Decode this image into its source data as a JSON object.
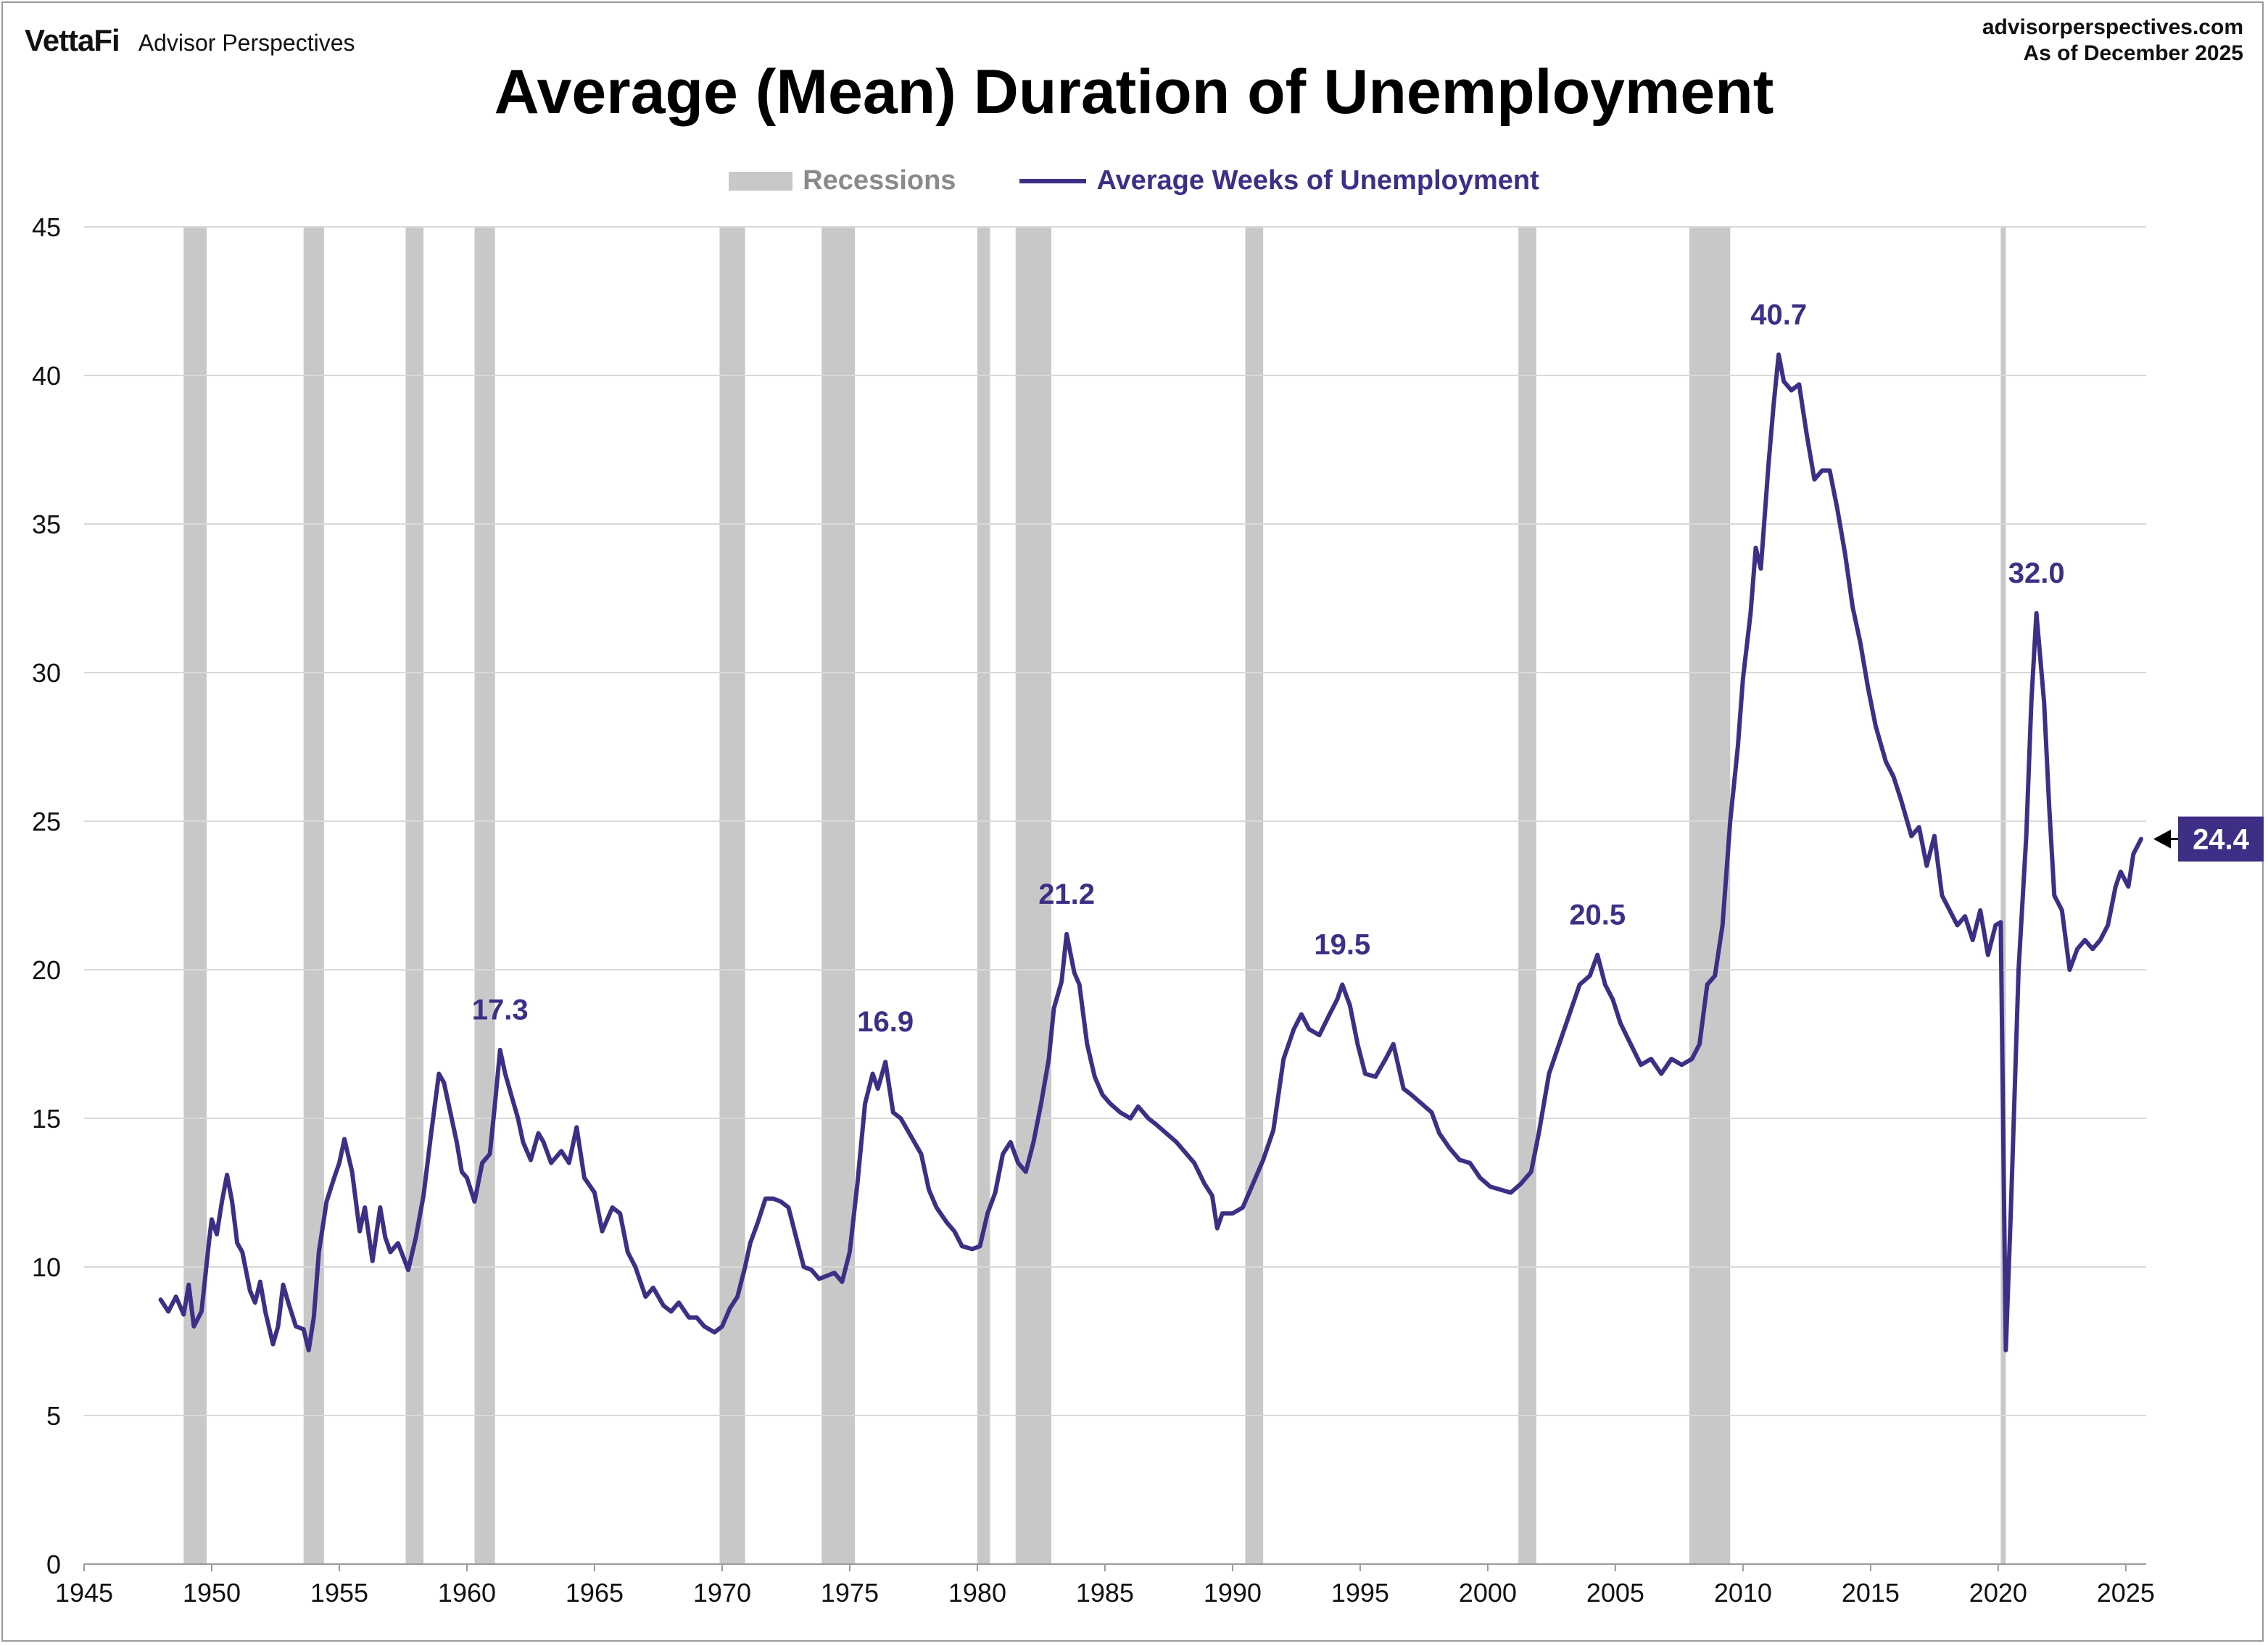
{
  "header": {
    "logo": "VettaFi",
    "brand": "Advisor Perspectives",
    "source_url": "advisorperspectives.com",
    "as_of": "As of December 2025"
  },
  "colors": {
    "line": "#3f2e86",
    "recession": "#c8c8c8",
    "grid": "#d9d9d9"
  },
  "chart_data": {
    "type": "line",
    "title": "Average (Mean) Duration of Unemployment",
    "xlabel": "",
    "ylabel": "",
    "xlim": [
      1945,
      2025.8
    ],
    "ylim": [
      0,
      45
    ],
    "x_ticks": [
      1945,
      1950,
      1955,
      1960,
      1965,
      1970,
      1975,
      1980,
      1985,
      1990,
      1995,
      2000,
      2005,
      2010,
      2015,
      2020,
      2025
    ],
    "y_ticks": [
      0,
      5,
      10,
      15,
      20,
      25,
      30,
      35,
      40,
      45
    ],
    "grid": "horizontal",
    "legend": {
      "position": "top-center",
      "entries": [
        "Recessions",
        "Average Weeks of Unemployment"
      ]
    },
    "recessions": [
      [
        1948.9,
        1949.8
      ],
      [
        1953.6,
        1954.4
      ],
      [
        1957.6,
        1958.3
      ],
      [
        1960.3,
        1961.1
      ],
      [
        1969.9,
        1970.9
      ],
      [
        1973.9,
        1975.2
      ],
      [
        1980.0,
        1980.5
      ],
      [
        1981.5,
        1982.9
      ],
      [
        1990.5,
        1991.2
      ],
      [
        2001.2,
        2001.9
      ],
      [
        2007.9,
        2009.5
      ],
      [
        2020.1,
        2020.3
      ]
    ],
    "series": [
      {
        "name": "Average Weeks of Unemployment",
        "points": [
          [
            1948.0,
            8.9
          ],
          [
            1948.3,
            8.5
          ],
          [
            1948.6,
            9.0
          ],
          [
            1948.9,
            8.4
          ],
          [
            1949.1,
            9.4
          ],
          [
            1949.3,
            8.0
          ],
          [
            1949.6,
            8.5
          ],
          [
            1949.9,
            10.9
          ],
          [
            1950.0,
            11.6
          ],
          [
            1950.2,
            11.1
          ],
          [
            1950.4,
            12.2
          ],
          [
            1950.6,
            13.1
          ],
          [
            1950.8,
            12.2
          ],
          [
            1951.0,
            10.8
          ],
          [
            1951.2,
            10.5
          ],
          [
            1951.5,
            9.2
          ],
          [
            1951.7,
            8.8
          ],
          [
            1951.9,
            9.5
          ],
          [
            1952.1,
            8.5
          ],
          [
            1952.4,
            7.4
          ],
          [
            1952.6,
            8.0
          ],
          [
            1952.8,
            9.4
          ],
          [
            1953.0,
            8.8
          ],
          [
            1953.3,
            8.0
          ],
          [
            1953.6,
            7.9
          ],
          [
            1953.8,
            7.2
          ],
          [
            1954.0,
            8.3
          ],
          [
            1954.2,
            10.5
          ],
          [
            1954.5,
            12.2
          ],
          [
            1954.8,
            13.0
          ],
          [
            1955.0,
            13.5
          ],
          [
            1955.2,
            14.3
          ],
          [
            1955.5,
            13.2
          ],
          [
            1955.8,
            11.2
          ],
          [
            1956.0,
            12.0
          ],
          [
            1956.3,
            10.2
          ],
          [
            1956.6,
            12.0
          ],
          [
            1956.8,
            11.0
          ],
          [
            1957.0,
            10.5
          ],
          [
            1957.3,
            10.8
          ],
          [
            1957.7,
            9.9
          ],
          [
            1958.0,
            11.0
          ],
          [
            1958.3,
            12.4
          ],
          [
            1958.6,
            14.5
          ],
          [
            1958.9,
            16.5
          ],
          [
            1959.1,
            16.2
          ],
          [
            1959.4,
            15.0
          ],
          [
            1959.6,
            14.2
          ],
          [
            1959.8,
            13.2
          ],
          [
            1960.0,
            13.0
          ],
          [
            1960.3,
            12.2
          ],
          [
            1960.6,
            13.5
          ],
          [
            1960.9,
            13.8
          ],
          [
            1961.1,
            15.5
          ],
          [
            1961.3,
            17.3
          ],
          [
            1961.5,
            16.5
          ],
          [
            1961.8,
            15.6
          ],
          [
            1962.0,
            15.0
          ],
          [
            1962.2,
            14.2
          ],
          [
            1962.5,
            13.6
          ],
          [
            1962.8,
            14.5
          ],
          [
            1963.0,
            14.2
          ],
          [
            1963.3,
            13.5
          ],
          [
            1963.7,
            13.9
          ],
          [
            1964.0,
            13.5
          ],
          [
            1964.3,
            14.7
          ],
          [
            1964.6,
            13.0
          ],
          [
            1965.0,
            12.5
          ],
          [
            1965.3,
            11.2
          ],
          [
            1965.7,
            12.0
          ],
          [
            1966.0,
            11.8
          ],
          [
            1966.3,
            10.5
          ],
          [
            1966.6,
            10.0
          ],
          [
            1967.0,
            9.0
          ],
          [
            1967.3,
            9.3
          ],
          [
            1967.7,
            8.7
          ],
          [
            1968.0,
            8.5
          ],
          [
            1968.3,
            8.8
          ],
          [
            1968.7,
            8.3
          ],
          [
            1969.0,
            8.3
          ],
          [
            1969.3,
            8.0
          ],
          [
            1969.7,
            7.8
          ],
          [
            1970.0,
            8.0
          ],
          [
            1970.3,
            8.6
          ],
          [
            1970.6,
            9.0
          ],
          [
            1970.9,
            10.0
          ],
          [
            1971.1,
            10.8
          ],
          [
            1971.4,
            11.5
          ],
          [
            1971.7,
            12.3
          ],
          [
            1972.0,
            12.3
          ],
          [
            1972.3,
            12.2
          ],
          [
            1972.6,
            12.0
          ],
          [
            1972.9,
            11.0
          ],
          [
            1973.2,
            10.0
          ],
          [
            1973.5,
            9.9
          ],
          [
            1973.8,
            9.6
          ],
          [
            1974.1,
            9.7
          ],
          [
            1974.4,
            9.8
          ],
          [
            1974.7,
            9.5
          ],
          [
            1975.0,
            10.5
          ],
          [
            1975.3,
            12.8
          ],
          [
            1975.6,
            15.5
          ],
          [
            1975.9,
            16.5
          ],
          [
            1976.1,
            16.0
          ],
          [
            1976.4,
            16.9
          ],
          [
            1976.7,
            15.2
          ],
          [
            1977.0,
            15.0
          ],
          [
            1977.4,
            14.4
          ],
          [
            1977.8,
            13.8
          ],
          [
            1978.1,
            12.6
          ],
          [
            1978.4,
            12.0
          ],
          [
            1978.8,
            11.5
          ],
          [
            1979.1,
            11.2
          ],
          [
            1979.4,
            10.7
          ],
          [
            1979.8,
            10.6
          ],
          [
            1980.1,
            10.7
          ],
          [
            1980.4,
            11.8
          ],
          [
            1980.7,
            12.5
          ],
          [
            1981.0,
            13.8
          ],
          [
            1981.3,
            14.2
          ],
          [
            1981.6,
            13.5
          ],
          [
            1981.9,
            13.2
          ],
          [
            1982.2,
            14.2
          ],
          [
            1982.5,
            15.5
          ],
          [
            1982.8,
            17.0
          ],
          [
            1983.0,
            18.7
          ],
          [
            1983.3,
            19.6
          ],
          [
            1983.5,
            21.2
          ],
          [
            1983.8,
            19.9
          ],
          [
            1984.0,
            19.5
          ],
          [
            1984.3,
            17.5
          ],
          [
            1984.6,
            16.4
          ],
          [
            1984.9,
            15.8
          ],
          [
            1985.2,
            15.5
          ],
          [
            1985.6,
            15.2
          ],
          [
            1986.0,
            15.0
          ],
          [
            1986.3,
            15.4
          ],
          [
            1986.7,
            15.0
          ],
          [
            1987.0,
            14.8
          ],
          [
            1987.4,
            14.5
          ],
          [
            1987.8,
            14.2
          ],
          [
            1988.1,
            13.9
          ],
          [
            1988.5,
            13.5
          ],
          [
            1988.9,
            12.8
          ],
          [
            1989.2,
            12.4
          ],
          [
            1989.4,
            11.3
          ],
          [
            1989.6,
            11.8
          ],
          [
            1990.0,
            11.8
          ],
          [
            1990.4,
            12.0
          ],
          [
            1990.8,
            12.8
          ],
          [
            1991.2,
            13.6
          ],
          [
            1991.6,
            14.6
          ],
          [
            1992.0,
            17.0
          ],
          [
            1992.4,
            18.0
          ],
          [
            1992.7,
            18.5
          ],
          [
            1993.0,
            18.0
          ],
          [
            1993.4,
            17.8
          ],
          [
            1993.8,
            18.5
          ],
          [
            1994.1,
            19.0
          ],
          [
            1994.3,
            19.5
          ],
          [
            1994.6,
            18.8
          ],
          [
            1994.9,
            17.5
          ],
          [
            1995.2,
            16.5
          ],
          [
            1995.6,
            16.4
          ],
          [
            1996.0,
            17.0
          ],
          [
            1996.3,
            17.5
          ],
          [
            1996.7,
            16.0
          ],
          [
            1997.0,
            15.8
          ],
          [
            1997.4,
            15.5
          ],
          [
            1997.8,
            15.2
          ],
          [
            1998.1,
            14.5
          ],
          [
            1998.5,
            14.0
          ],
          [
            1998.9,
            13.6
          ],
          [
            1999.3,
            13.5
          ],
          [
            1999.7,
            13.0
          ],
          [
            2000.1,
            12.7
          ],
          [
            2000.5,
            12.6
          ],
          [
            2000.9,
            12.5
          ],
          [
            2001.3,
            12.8
          ],
          [
            2001.7,
            13.2
          ],
          [
            2002.0,
            14.5
          ],
          [
            2002.4,
            16.5
          ],
          [
            2002.8,
            17.5
          ],
          [
            2003.2,
            18.5
          ],
          [
            2003.6,
            19.5
          ],
          [
            2004.0,
            19.8
          ],
          [
            2004.3,
            20.5
          ],
          [
            2004.6,
            19.5
          ],
          [
            2004.9,
            19.0
          ],
          [
            2005.2,
            18.2
          ],
          [
            2005.6,
            17.5
          ],
          [
            2006.0,
            16.8
          ],
          [
            2006.4,
            17.0
          ],
          [
            2006.8,
            16.5
          ],
          [
            2007.2,
            17.0
          ],
          [
            2007.6,
            16.8
          ],
          [
            2008.0,
            17.0
          ],
          [
            2008.3,
            17.5
          ],
          [
            2008.6,
            19.5
          ],
          [
            2008.9,
            19.8
          ],
          [
            2009.2,
            21.5
          ],
          [
            2009.5,
            25.0
          ],
          [
            2009.8,
            27.5
          ],
          [
            2010.0,
            29.8
          ],
          [
            2010.3,
            32.0
          ],
          [
            2010.5,
            34.2
          ],
          [
            2010.7,
            33.5
          ],
          [
            2011.0,
            37.0
          ],
          [
            2011.2,
            39.0
          ],
          [
            2011.4,
            40.7
          ],
          [
            2011.6,
            39.8
          ],
          [
            2011.9,
            39.5
          ],
          [
            2012.2,
            39.7
          ],
          [
            2012.5,
            38.0
          ],
          [
            2012.8,
            36.5
          ],
          [
            2013.1,
            36.8
          ],
          [
            2013.4,
            36.8
          ],
          [
            2013.7,
            35.5
          ],
          [
            2014.0,
            34.0
          ],
          [
            2014.3,
            32.2
          ],
          [
            2014.6,
            31.0
          ],
          [
            2014.9,
            29.5
          ],
          [
            2015.2,
            28.2
          ],
          [
            2015.6,
            27.0
          ],
          [
            2015.9,
            26.5
          ],
          [
            2016.2,
            25.7
          ],
          [
            2016.6,
            24.5
          ],
          [
            2016.9,
            24.8
          ],
          [
            2017.2,
            23.5
          ],
          [
            2017.5,
            24.5
          ],
          [
            2017.8,
            22.5
          ],
          [
            2018.1,
            22.0
          ],
          [
            2018.4,
            21.5
          ],
          [
            2018.7,
            21.8
          ],
          [
            2019.0,
            21.0
          ],
          [
            2019.3,
            22.0
          ],
          [
            2019.6,
            20.5
          ],
          [
            2019.9,
            21.5
          ],
          [
            2020.1,
            21.6
          ],
          [
            2020.3,
            7.2
          ],
          [
            2020.5,
            12.0
          ],
          [
            2020.8,
            20.0
          ],
          [
            2021.1,
            24.5
          ],
          [
            2021.3,
            29.0
          ],
          [
            2021.5,
            32.0
          ],
          [
            2021.8,
            29.0
          ],
          [
            2022.0,
            25.5
          ],
          [
            2022.2,
            22.5
          ],
          [
            2022.5,
            22.0
          ],
          [
            2022.8,
            20.0
          ],
          [
            2023.1,
            20.7
          ],
          [
            2023.4,
            21.0
          ],
          [
            2023.7,
            20.7
          ],
          [
            2024.0,
            21.0
          ],
          [
            2024.3,
            21.5
          ],
          [
            2024.6,
            22.8
          ],
          [
            2024.8,
            23.3
          ],
          [
            2025.1,
            22.8
          ],
          [
            2025.3,
            23.9
          ],
          [
            2025.6,
            24.4
          ]
        ]
      }
    ],
    "annotations": [
      {
        "text": "17.3",
        "x": 1961.3,
        "y": 17.3
      },
      {
        "text": "16.9",
        "x": 1976.4,
        "y": 16.9
      },
      {
        "text": "21.2",
        "x": 1983.5,
        "y": 21.2
      },
      {
        "text": "19.5",
        "x": 1994.3,
        "y": 19.5
      },
      {
        "text": "20.5",
        "x": 2004.3,
        "y": 20.5
      },
      {
        "text": "40.7",
        "x": 2011.4,
        "y": 40.7
      },
      {
        "text": "32.0",
        "x": 2021.5,
        "y": 32.0
      }
    ],
    "latest": {
      "text": "24.4",
      "value": 24.4
    }
  }
}
